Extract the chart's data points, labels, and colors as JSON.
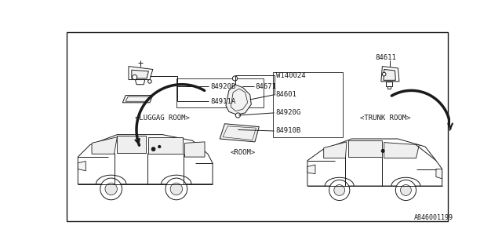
{
  "bg_color": "#ffffff",
  "border_color": "#000000",
  "fig_width": 6.4,
  "fig_height": 3.2,
  "dpi": 100,
  "lc": "#1a1a1a",
  "ref_label": "A846001199",
  "label_84920B": "84920B",
  "label_84671": "84671",
  "label_84911A": "84911A",
  "label_84611": "84611",
  "label_W140024": "W140024",
  "label_84601": "84601",
  "label_84920G": "84920G",
  "label_84910B": "84910B",
  "label_luggag": "<LUGGAG ROOM>",
  "label_trunk": "<TRUNK ROOM>",
  "label_room": "<ROOM>"
}
